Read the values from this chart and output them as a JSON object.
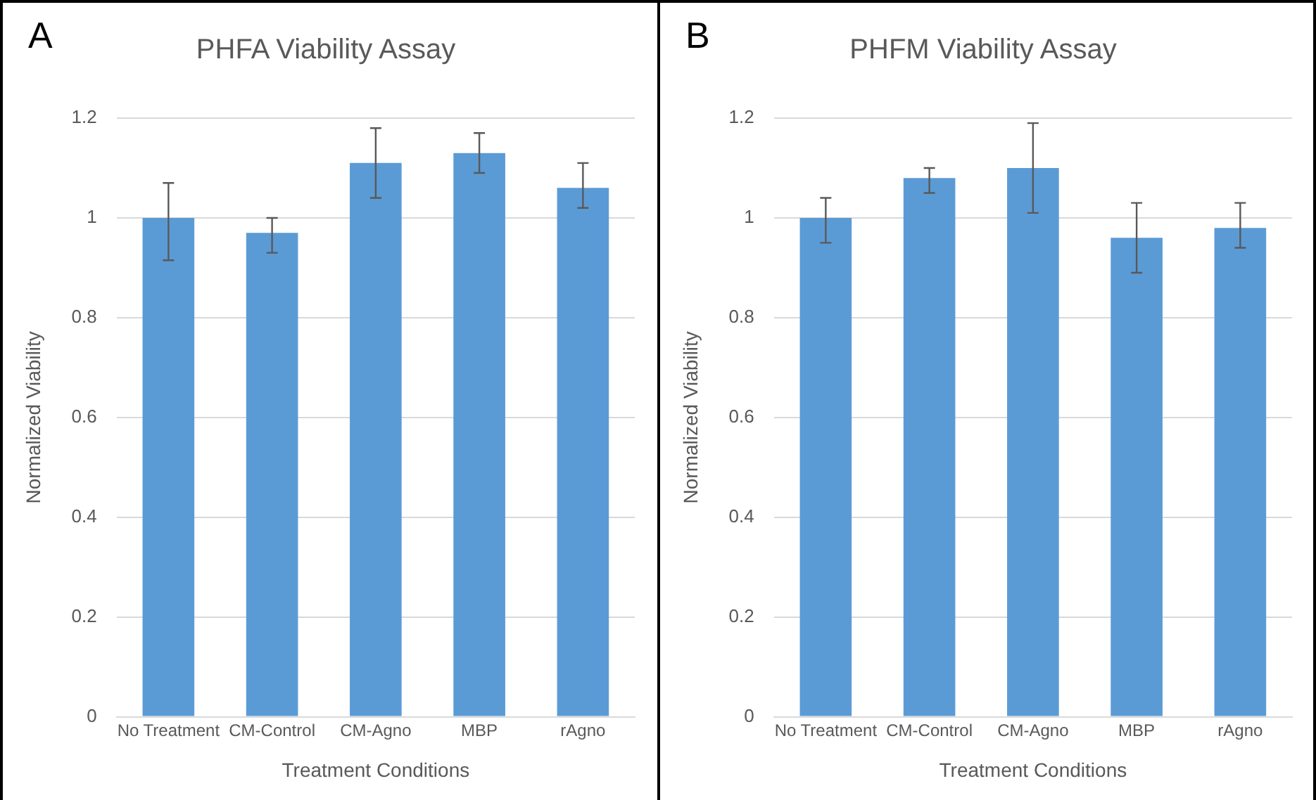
{
  "chart_data": [
    {
      "type": "bar",
      "title": "PHFA Viability Assay",
      "xlabel": "Treatment Conditions",
      "ylabel": "Normalized Viability",
      "annotations": [
        "A"
      ],
      "categories": [
        "No Treatment",
        "CM-Control",
        "CM-Agno",
        "MBP",
        "rAgno"
      ],
      "series": [
        {
          "color": "#5b9bd5",
          "values": [
            1.0,
            0.97,
            1.11,
            1.13,
            1.06
          ],
          "errors": [
            [
              0.915,
              1.07
            ],
            [
              0.93,
              1.0
            ],
            [
              1.04,
              1.18
            ],
            [
              1.09,
              1.17
            ],
            [
              1.02,
              1.11
            ]
          ]
        }
      ],
      "ylim": [
        0,
        1.2
      ],
      "yticks": [
        0,
        0.2,
        0.4,
        0.6,
        0.8,
        1,
        1.2
      ],
      "grid": "y",
      "legend": false
    },
    {
      "type": "bar",
      "title": "PHFM Viability Assay",
      "xlabel": "Treatment Conditions",
      "ylabel": "Normalized Viability",
      "annotations": [
        "B"
      ],
      "categories": [
        "No Treatment",
        "CM-Control",
        "CM-Agno",
        "MBP",
        "rAgno"
      ],
      "series": [
        {
          "color": "#5b9bd5",
          "values": [
            1.0,
            1.08,
            1.1,
            0.96,
            0.98
          ],
          "errors": [
            [
              0.95,
              1.04
            ],
            [
              1.05,
              1.1
            ],
            [
              1.01,
              1.19
            ],
            [
              0.89,
              1.03
            ],
            [
              0.94,
              1.03
            ]
          ]
        }
      ],
      "ylim": [
        0,
        1.2
      ],
      "yticks": [
        0,
        0.2,
        0.4,
        0.6,
        0.8,
        1,
        1.2
      ],
      "grid": "y",
      "legend": false
    }
  ]
}
